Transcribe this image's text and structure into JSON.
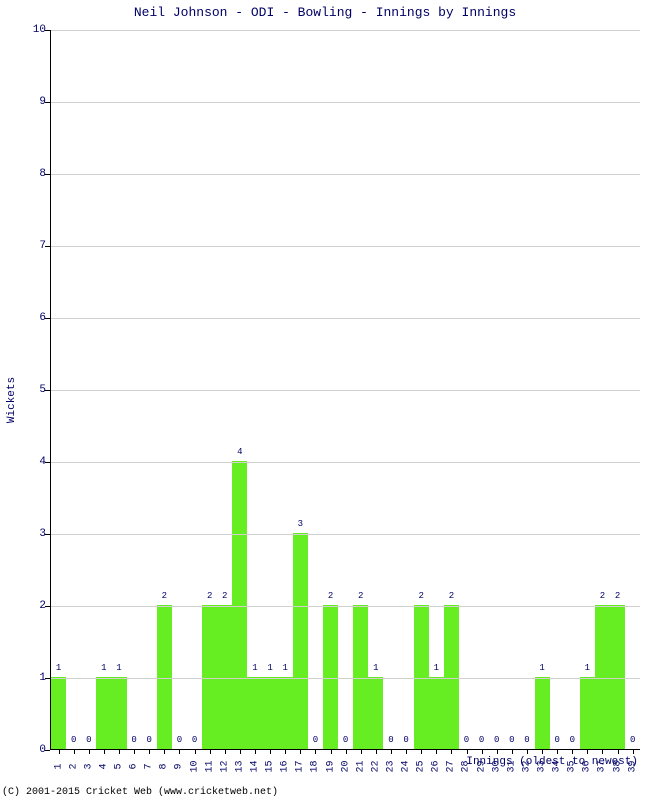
{
  "chart": {
    "type": "bar",
    "title": "Neil Johnson - ODI - Bowling - Innings by Innings",
    "ylabel": "Wickets",
    "xlabel": "Innings (oldest to newest)",
    "copyright": "(C) 2001-2015 Cricket Web (www.cricketweb.net)",
    "ylim": [
      0,
      10
    ],
    "ytick_step": 1,
    "title_color": "#000066",
    "label_color": "#000066",
    "bar_color": "#66ee22",
    "grid_color": "#d0d0d0",
    "background_color": "#ffffff",
    "title_fontsize": 13,
    "label_fontsize": 11,
    "tick_fontsize": 10,
    "barlabel_fontsize": 9,
    "categories": [
      1,
      2,
      3,
      4,
      5,
      6,
      7,
      8,
      9,
      10,
      11,
      12,
      13,
      14,
      15,
      16,
      17,
      18,
      19,
      20,
      21,
      22,
      23,
      24,
      25,
      26,
      27,
      28,
      29,
      30,
      31,
      32,
      33,
      34,
      35,
      36,
      37,
      38,
      39
    ],
    "values": [
      1,
      0,
      0,
      1,
      1,
      0,
      0,
      2,
      0,
      0,
      2,
      2,
      4,
      1,
      1,
      1,
      3,
      0,
      2,
      0,
      2,
      1,
      0,
      0,
      2,
      1,
      2,
      0,
      0,
      0,
      0,
      0,
      1,
      0,
      0,
      1,
      2,
      2,
      0
    ]
  }
}
